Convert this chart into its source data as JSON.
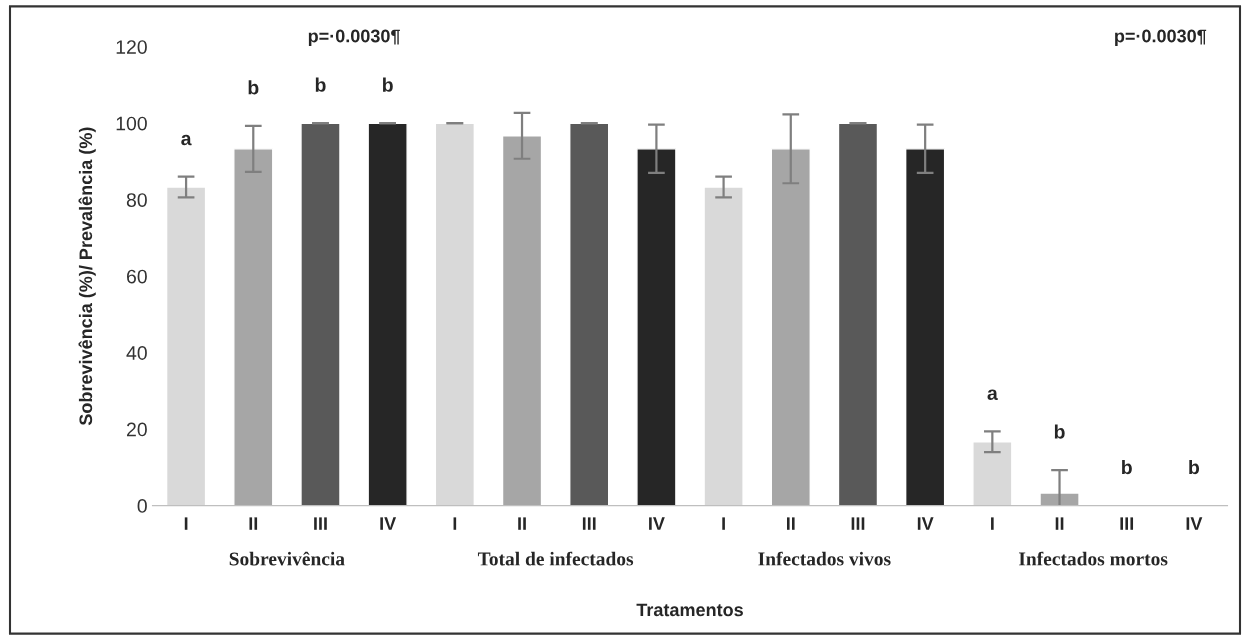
{
  "chart_data": {
    "type": "bar",
    "xlabel": "Tratamentos",
    "ylabel": "Sobrevivência (%)/ Prevalência (%)",
    "categories": [
      "I",
      "II",
      "III",
      "IV",
      "I",
      "II",
      "III",
      "IV",
      "I",
      "II",
      "III",
      "IV",
      "I",
      "II",
      "III",
      "IV"
    ],
    "values": [
      83.3,
      93.3,
      100,
      100,
      100,
      96.7,
      100,
      93.3,
      83.3,
      93.3,
      100,
      93.3,
      16.7,
      3.3,
      0,
      0
    ],
    "errors": [
      2.7,
      6,
      0,
      0,
      0,
      6,
      0,
      6.3,
      2.7,
      9,
      0,
      6.3,
      2.7,
      6,
      null,
      null
    ],
    "colors": [
      "#d9d9d9",
      "#a6a6a6",
      "#595959",
      "#262626",
      "#d9d9d9",
      "#a6a6a6",
      "#595959",
      "#262626",
      "#d9d9d9",
      "#a6a6a6",
      "#595959",
      "#262626",
      "#d9d9d9",
      "#a6a6a6",
      null,
      null
    ],
    "value_labels": [
      "a",
      "b",
      "b",
      "b",
      null,
      null,
      null,
      null,
      null,
      null,
      null,
      null,
      "a",
      "b",
      "b",
      "b"
    ],
    "annotations": [
      "Sobrevivência",
      "Total de infectados",
      "Infectados vivos",
      "Infectados mortos",
      "p=·0.0030¶",
      "p=·0.0030¶"
    ],
    "ylim": [
      0,
      120
    ],
    "yticks": [
      0,
      20,
      40,
      60,
      80,
      100,
      120
    ],
    "grid": false,
    "legend": false
  }
}
